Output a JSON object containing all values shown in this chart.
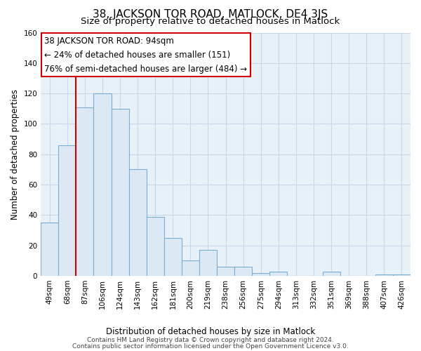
{
  "title": "38, JACKSON TOR ROAD, MATLOCK, DE4 3JS",
  "subtitle": "Size of property relative to detached houses in Matlock",
  "xlabel": "Distribution of detached houses by size in Matlock",
  "ylabel": "Number of detached properties",
  "bar_labels": [
    "49sqm",
    "68sqm",
    "87sqm",
    "106sqm",
    "124sqm",
    "143sqm",
    "162sqm",
    "181sqm",
    "200sqm",
    "219sqm",
    "238sqm",
    "256sqm",
    "275sqm",
    "294sqm",
    "313sqm",
    "332sqm",
    "351sqm",
    "369sqm",
    "388sqm",
    "407sqm",
    "426sqm"
  ],
  "bar_values": [
    35,
    86,
    111,
    120,
    110,
    70,
    39,
    25,
    10,
    17,
    6,
    6,
    2,
    3,
    0,
    0,
    3,
    0,
    0,
    1,
    1
  ],
  "bar_color": "#dce9f5",
  "bar_edge_color": "#7aafd4",
  "vline_color": "#cc0000",
  "annotation_line1": "38 JACKSON TOR ROAD: 94sqm",
  "annotation_line2": "← 24% of detached houses are smaller (151)",
  "annotation_line3": "76% of semi-detached houses are larger (484) →",
  "ylim": [
    0,
    160
  ],
  "yticks": [
    0,
    20,
    40,
    60,
    80,
    100,
    120,
    140,
    160
  ],
  "footer_line1": "Contains HM Land Registry data © Crown copyright and database right 2024.",
  "footer_line2": "Contains public sector information licensed under the Open Government Licence v3.0.",
  "bg_color": "#ffffff",
  "plot_bg_color": "#e8f0f8",
  "grid_color": "#c8d8e8",
  "title_fontsize": 11,
  "subtitle_fontsize": 9.5,
  "axis_label_fontsize": 8.5,
  "tick_fontsize": 7.5,
  "annotation_fontsize": 8.5,
  "footer_fontsize": 6.5,
  "vline_x_index": 2
}
